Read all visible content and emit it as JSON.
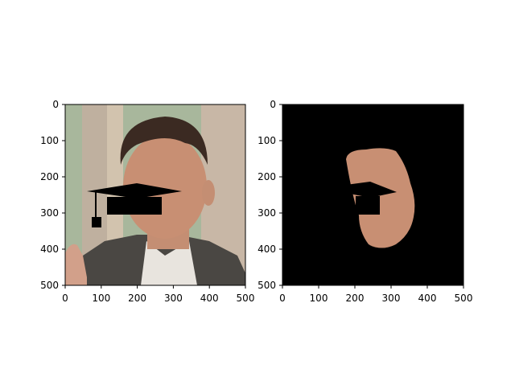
{
  "figure": {
    "background": "#ffffff",
    "panels": [
      {
        "id": "left",
        "content": "face photo with graduation-cap overlay",
        "x_ticks": [
          "0",
          "100",
          "200",
          "300",
          "400",
          "500"
        ],
        "y_ticks": [
          "0",
          "100",
          "200",
          "300",
          "400",
          "500"
        ],
        "x_range": [
          0,
          500
        ],
        "y_range": [
          0,
          500
        ]
      },
      {
        "id": "right",
        "content": "masked face region with black cap overlay on black background",
        "x_ticks": [
          "0",
          "100",
          "200",
          "300",
          "400",
          "500"
        ],
        "y_ticks": [
          "0",
          "100",
          "200",
          "300",
          "400",
          "500"
        ],
        "x_range": [
          0,
          500
        ],
        "y_range": [
          0,
          500
        ]
      }
    ],
    "colors": {
      "axis": "#000000",
      "mask_background": "#000000",
      "photo_bg_left": "#a8b79c",
      "photo_bg_right": "#c9b39a",
      "skin": "#c88f73",
      "hair": "#3b2a22",
      "suit": "#4a4743",
      "shirt": "#e8e4de"
    }
  }
}
